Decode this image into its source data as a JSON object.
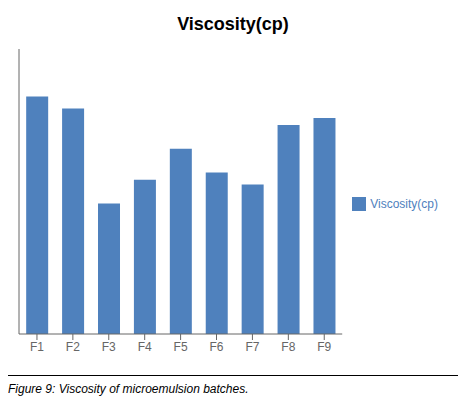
{
  "chart_data": {
    "type": "bar",
    "title": "Viscosity(cp)",
    "caption": "Figure 9: Viscosity of microemulsion batches.",
    "categories": [
      "F1",
      "F2",
      "F3",
      "F4",
      "F5",
      "F6",
      "F7",
      "F8",
      "F9"
    ],
    "series": [
      {
        "name": "Viscosity(cp)",
        "color": "#4f81bd",
        "values": [
          100,
          95,
          55,
          65,
          78,
          68,
          63,
          88,
          91
        ]
      }
    ],
    "ylim": [
      0,
      120
    ],
    "grid": false,
    "legend": "right",
    "tick_labels": "x"
  }
}
